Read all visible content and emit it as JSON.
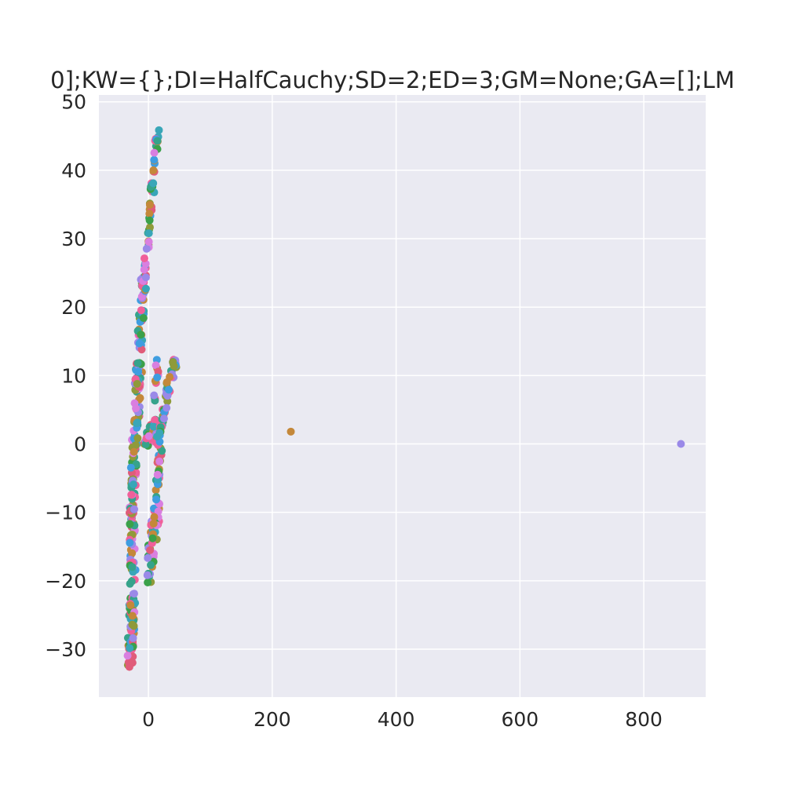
{
  "chart_data": {
    "type": "scatter",
    "title": "0];KW={};DI=HalfCauchy;SD=2;ED=3;GM=None;GA=[];LM",
    "xlabel": "",
    "ylabel": "",
    "xlim": [
      -80,
      900
    ],
    "ylim": [
      -37,
      51
    ],
    "x_ticks": [
      0,
      200,
      400,
      600,
      800
    ],
    "y_ticks": [
      -30,
      -20,
      -10,
      0,
      10,
      20,
      30,
      40,
      50
    ],
    "x_tick_labels": [
      "0",
      "200",
      "400",
      "600",
      "800"
    ],
    "y_tick_labels": [
      "−30",
      "−20",
      "−10",
      "0",
      "10",
      "20",
      "30",
      "40",
      "50"
    ],
    "grid": true,
    "background": "#eaeaf2",
    "palette": [
      "#c4883a",
      "#8f9a3a",
      "#3ba14a",
      "#36a38b",
      "#39a6b8",
      "#3f9de0",
      "#9a89e8",
      "#d97fe0",
      "#f0609a",
      "#e05c7a"
    ],
    "clusters": [
      {
        "from": [
          -30,
          -33
        ],
        "to": [
          -25,
          -20
        ],
        "width": 10,
        "count": 70
      },
      {
        "from": [
          -25,
          -20
        ],
        "to": [
          -27,
          -9
        ],
        "width": 9,
        "count": 50
      },
      {
        "from": [
          -26,
          -10
        ],
        "to": [
          -22,
          -3
        ],
        "width": 8,
        "count": 25
      },
      {
        "from": [
          -24,
          -3
        ],
        "to": [
          -15,
          10
        ],
        "width": 10,
        "count": 60
      },
      {
        "from": [
          -18,
          8
        ],
        "to": [
          -8,
          25
        ],
        "width": 9,
        "count": 60
      },
      {
        "from": [
          -8,
          22
        ],
        "to": [
          15,
          46
        ],
        "width": 6,
        "count": 55
      },
      {
        "from": [
          -2,
          -21
        ],
        "to": [
          14,
          -9
        ],
        "width": 12,
        "count": 55
      },
      {
        "from": [
          -5,
          0
        ],
        "to": [
          14,
          3
        ],
        "width": 12,
        "count": 50
      },
      {
        "from": [
          12,
          -8
        ],
        "to": [
          20,
          0
        ],
        "width": 5,
        "count": 25
      },
      {
        "from": [
          15,
          0
        ],
        "to": [
          30,
          7
        ],
        "width": 7,
        "count": 30
      },
      {
        "from": [
          28,
          7
        ],
        "to": [
          44,
          13
        ],
        "width": 8,
        "count": 25
      },
      {
        "from": [
          8,
          6
        ],
        "to": [
          16,
          12
        ],
        "width": 5,
        "count": 12
      }
    ],
    "outliers": [
      {
        "x": 230,
        "y": 1.8,
        "color": "#c4883a"
      },
      {
        "x": 860,
        "y": 0,
        "color": "#9a89e8"
      }
    ]
  }
}
